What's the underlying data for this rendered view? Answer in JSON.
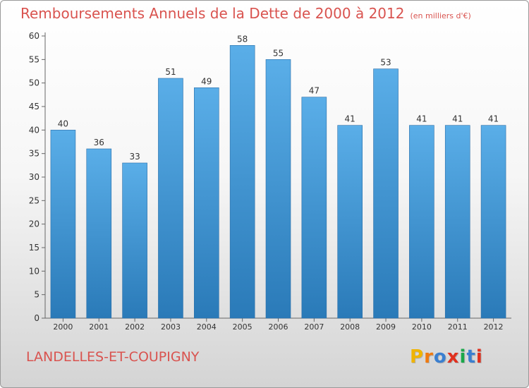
{
  "header": {
    "title": "Remboursements Annuels de la Dette de 2000 à 2012",
    "subtitle": "(en milliers d'€)"
  },
  "footer": {
    "commune": "LANDELLES-ET-COUPIGNY",
    "logo": "Proxiti",
    "logo_letters": [
      "P",
      "r",
      "o",
      "x",
      "i",
      "t",
      "i"
    ],
    "logo_colors": [
      "#f0b400",
      "#f07a10",
      "#3a7fd0",
      "#e0301e",
      "#1aa84a",
      "#3a7fd0",
      "#e0301e"
    ]
  },
  "chart_data": {
    "type": "bar",
    "title": "Remboursements Annuels de la Dette de 2000 à 2012",
    "subtitle": "(en milliers d'€)",
    "categories": [
      "2000",
      "2001",
      "2002",
      "2003",
      "2004",
      "2005",
      "2006",
      "2007",
      "2008",
      "2009",
      "2010",
      "2011",
      "2012"
    ],
    "values": [
      40,
      36,
      33,
      51,
      49,
      58,
      55,
      47,
      41,
      53,
      41,
      41,
      41
    ],
    "ylim": [
      0,
      60
    ],
    "yticks": [
      0,
      5,
      10,
      15,
      20,
      25,
      30,
      35,
      40,
      45,
      50,
      55,
      60
    ],
    "grid": false,
    "bar_color_top": "#5aaee8",
    "bar_color_bottom": "#2a7ab8"
  }
}
